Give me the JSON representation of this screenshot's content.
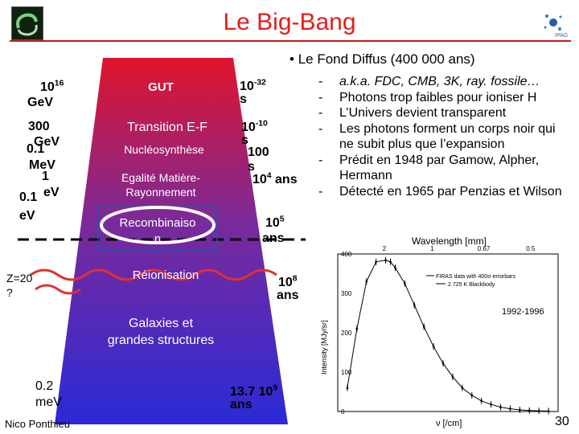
{
  "title": "Le Big-Bang",
  "header_bullet": "Le Fond Diffus (400 000 ans)",
  "bullets": [
    "a.k.a. FDC, CMB, 3K, ray. fossile…",
    "Photons trop faibles pour ioniser H",
    "L’Univers devient transparent",
    "Les photons forment un corps noir qui ne subit plus que l’expansion",
    "Prédit en 1948 par Gamow, Alpher, Hermann",
    "Détecté en 1965 par Penzias et Wilson"
  ],
  "energy_labels": {
    "e1": "1016",
    "e1b": "GeV",
    "e2": "300",
    "e2b": "GeV",
    "e3": "0.1",
    "e3b": "MeV",
    "e4": "1",
    "e4b": "eV",
    "e5": "0.1",
    "e5b": "eV",
    "z": "Z=20",
    "zq": "?",
    "bottom": "0.2",
    "bottom_b": "meV"
  },
  "stages": {
    "gut": "GUT",
    "transition": "Transition E-F",
    "nucleo": "Nucléosynthèse",
    "egalite1": "Egalité Matière-",
    "egalite2": "Rayonnement",
    "recomb1": "Recombinaiso",
    "recomb2": "n",
    "reion": "Réionisation",
    "galaxies1": "Galaxies et",
    "galaxies2": "grandes structures"
  },
  "times": {
    "t1": "10-32",
    "t1b": "s",
    "t2": "10-10",
    "t2b": "s",
    "t3": "100",
    "t3b": "s",
    "t4": "104 ans",
    "t5": "105",
    "t5b": "ans",
    "t6": "108",
    "t6b": "ans",
    "t7": "13.7 109",
    "t7b": "ans"
  },
  "author": "Nico Ponthieu",
  "page_number": "30",
  "chart_data": {
    "type": "scatter",
    "legend": [
      "FIRAS data with 400σ errorbars",
      "2.725 K Blackbody"
    ],
    "annotation": "1992-1996",
    "top_axis_label": "Wavelength [mm]",
    "top_ticks": [
      "2",
      "1",
      "0.67",
      "0.5"
    ],
    "ylabel": "Intensity [MJy/sr]",
    "xlabel": "ν [/cm]",
    "yticks": [
      "400",
      "300",
      "200",
      "100",
      "0"
    ],
    "xlim": [
      0,
      23
    ],
    "ylim": [
      0,
      400
    ],
    "x": [
      1,
      2,
      3,
      4,
      5,
      5.5,
      6,
      7,
      8,
      9,
      10,
      11,
      12,
      13,
      14,
      15,
      16,
      17,
      18,
      19,
      20,
      21,
      22
    ],
    "y": [
      60,
      210,
      330,
      380,
      384,
      380,
      365,
      325,
      270,
      215,
      165,
      122,
      88,
      60,
      41,
      27,
      18,
      11,
      7,
      4,
      2.5,
      1.5,
      1
    ]
  }
}
